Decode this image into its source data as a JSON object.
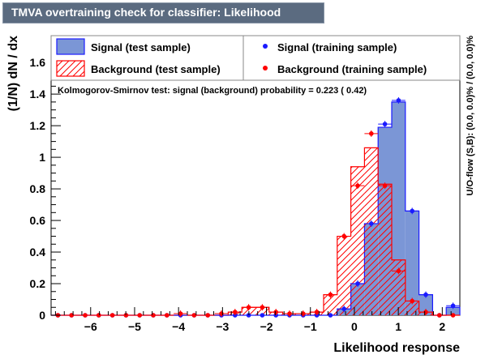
{
  "title": "TMVA overtraining check for classifier: Likelihood",
  "chart_data": {
    "type": "bar",
    "xlabel": "Likelihood response",
    "ylabel": "(1/N) dN / dx",
    "xlim": [
      -6.9,
      2.4
    ],
    "ylim": [
      0,
      1.77
    ],
    "x_ticks": [
      -6,
      -5,
      -4,
      -3,
      -2,
      -1,
      0,
      1,
      2
    ],
    "x_tick_labels": [
      "−6",
      "−5",
      "−4",
      "−3",
      "−2",
      "−1",
      "0",
      "1",
      "2"
    ],
    "y_ticks": [
      0,
      0.2,
      0.4,
      0.6,
      0.8,
      1,
      1.2,
      1.4,
      1.6
    ],
    "y_tick_labels": [
      "0",
      "0.2",
      "0.4",
      "0.6",
      "0.8",
      "1",
      "1.2",
      "1.4",
      "1.6"
    ],
    "bin_edges": [
      -6.9,
      -6.59,
      -6.28,
      -5.97,
      -5.66,
      -5.35,
      -5.04,
      -4.73,
      -4.42,
      -4.11,
      -3.8,
      -3.49,
      -3.18,
      -2.87,
      -2.56,
      -2.25,
      -1.94,
      -1.63,
      -1.32,
      -1.01,
      -0.7,
      -0.39,
      -0.08,
      0.23,
      0.54,
      0.85,
      1.16,
      1.47,
      1.78,
      2.09,
      2.4
    ],
    "series": [
      {
        "name": "Signal (test sample)",
        "style": "filled",
        "color": "#7b96d6",
        "edge": "#1a1aff",
        "values": [
          0,
          0,
          0,
          0,
          0,
          0,
          0,
          0,
          0,
          0,
          0,
          0,
          0,
          0,
          0,
          0,
          0,
          0,
          0,
          0,
          0,
          0.04,
          0.2,
          0.58,
          1.19,
          1.35,
          0.66,
          0.13,
          0,
          0.05
        ]
      },
      {
        "name": "Background (test sample)",
        "style": "hatched",
        "color": "#ff0000",
        "values": [
          0,
          0,
          0,
          0,
          0,
          0,
          0,
          0,
          0,
          0,
          0,
          0,
          0,
          0.02,
          0.05,
          0.05,
          0.02,
          0.01,
          0.01,
          0.02,
          0.13,
          0.5,
          0.94,
          1.06,
          0.83,
          0.35,
          0.09,
          0.02,
          0,
          0
        ]
      },
      {
        "name": "Signal (training sample)",
        "style": "points",
        "color": "#1a1aff",
        "values": [
          0,
          0,
          0,
          0,
          0,
          0,
          0,
          0,
          0,
          0,
          0,
          0,
          0,
          0,
          0,
          0,
          0,
          0,
          0,
          0,
          0,
          0.04,
          0.2,
          0.58,
          1.21,
          1.36,
          0.66,
          0.13,
          0,
          0.06
        ]
      },
      {
        "name": "Background (training sample)",
        "style": "points",
        "color": "#ff0000",
        "values": [
          0,
          0,
          0,
          0,
          0,
          0,
          0,
          0,
          0,
          0.01,
          0,
          0,
          0.01,
          0.02,
          0.05,
          0.05,
          0.02,
          0.01,
          0.01,
          0.02,
          0.13,
          0.5,
          0.82,
          1.15,
          0.82,
          0.28,
          0.09,
          0.02,
          0,
          0
        ]
      }
    ],
    "annotation": "Kolmogorov-Smirnov test: signal (background) probability = 0.223 ( 0.42)",
    "side_text": "U/O-flow (S,B): (0.0, 0.0)% / (0.0, 0.0)%",
    "legend_placement": "top"
  }
}
